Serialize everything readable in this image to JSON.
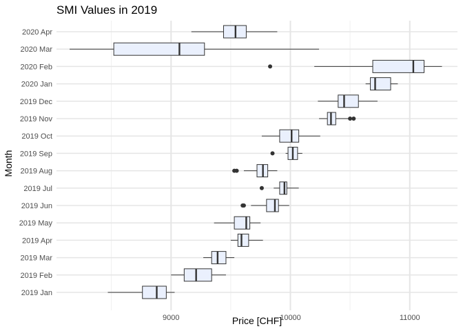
{
  "chart_data": {
    "type": "boxplot",
    "orientation": "horizontal",
    "title": "SMI Values in 2019",
    "xlabel": "Price [CHF]",
    "ylabel": "Month",
    "xlim": [
      8040,
      11400
    ],
    "xticks": [
      9000,
      10000,
      11000
    ],
    "grid": true,
    "box_fill": "#eaf0fd",
    "box_stroke": "#333333",
    "categories": [
      "2019 Jan",
      "2019 Feb",
      "2019 Mar",
      "2019 Apr",
      "2019 May",
      "2019 Jun",
      "2019 Jul",
      "2019 Aug",
      "2019 Sep",
      "2019 Oct",
      "2019 Nov",
      "2019 Dec",
      "2020 Jan",
      "2020 Feb",
      "2020 Mar",
      "2020 Apr"
    ],
    "boxes": [
      {
        "month": "2019 Jan",
        "whisker_low": 8470,
        "q1": 8760,
        "median": 8880,
        "q3": 8960,
        "whisker_high": 9030,
        "outliers": []
      },
      {
        "month": "2019 Feb",
        "whisker_low": 9000,
        "q1": 9110,
        "median": 9210,
        "q3": 9340,
        "whisker_high": 9460,
        "outliers": []
      },
      {
        "month": "2019 Mar",
        "whisker_low": 9270,
        "q1": 9340,
        "median": 9390,
        "q3": 9460,
        "whisker_high": 9530,
        "outliers": []
      },
      {
        "month": "2019 Apr",
        "whisker_low": 9500,
        "q1": 9560,
        "median": 9590,
        "q3": 9650,
        "whisker_high": 9770,
        "outliers": []
      },
      {
        "month": "2019 May",
        "whisker_low": 9360,
        "q1": 9530,
        "median": 9630,
        "q3": 9660,
        "whisker_high": 9750,
        "outliers": []
      },
      {
        "month": "2019 Jun",
        "whisker_low": 9670,
        "q1": 9800,
        "median": 9870,
        "q3": 9900,
        "whisker_high": 9990,
        "outliers": [
          9610,
          9600
        ]
      },
      {
        "month": "2019 Jul",
        "whisker_low": 9860,
        "q1": 9910,
        "median": 9950,
        "q3": 9970,
        "whisker_high": 10070,
        "outliers": [
          9760
        ]
      },
      {
        "month": "2019 Aug",
        "whisker_low": 9610,
        "q1": 9720,
        "median": 9770,
        "q3": 9810,
        "whisker_high": 9890,
        "outliers": [
          9530,
          9550
        ]
      },
      {
        "month": "2019 Sep",
        "whisker_low": 9960,
        "q1": 9980,
        "median": 10020,
        "q3": 10060,
        "whisker_high": 10100,
        "outliers": [
          9850
        ]
      },
      {
        "month": "2019 Oct",
        "whisker_low": 9760,
        "q1": 9910,
        "median": 10010,
        "q3": 10070,
        "whisker_high": 10250,
        "outliers": []
      },
      {
        "month": "2019 Nov",
        "whisker_low": 10240,
        "q1": 10310,
        "median": 10340,
        "q3": 10380,
        "whisker_high": 10500,
        "outliers": [
          10500,
          10530
        ]
      },
      {
        "month": "2019 Dec",
        "whisker_low": 10230,
        "q1": 10400,
        "median": 10450,
        "q3": 10570,
        "whisker_high": 10730,
        "outliers": []
      },
      {
        "month": "2020 Jan",
        "whisker_low": 10630,
        "q1": 10670,
        "median": 10710,
        "q3": 10840,
        "whisker_high": 10900,
        "outliers": []
      },
      {
        "month": "2020 Feb",
        "whisker_low": 10200,
        "q1": 10690,
        "median": 11030,
        "q3": 11120,
        "whisker_high": 11270,
        "outliers": [
          9830
        ]
      },
      {
        "month": "2020 Mar",
        "whisker_low": 8150,
        "q1": 8520,
        "median": 9070,
        "q3": 9280,
        "whisker_high": 10240,
        "outliers": []
      },
      {
        "month": "2020 Apr",
        "whisker_low": 9170,
        "q1": 9440,
        "median": 9540,
        "q3": 9630,
        "whisker_high": 9890,
        "outliers": []
      }
    ]
  }
}
